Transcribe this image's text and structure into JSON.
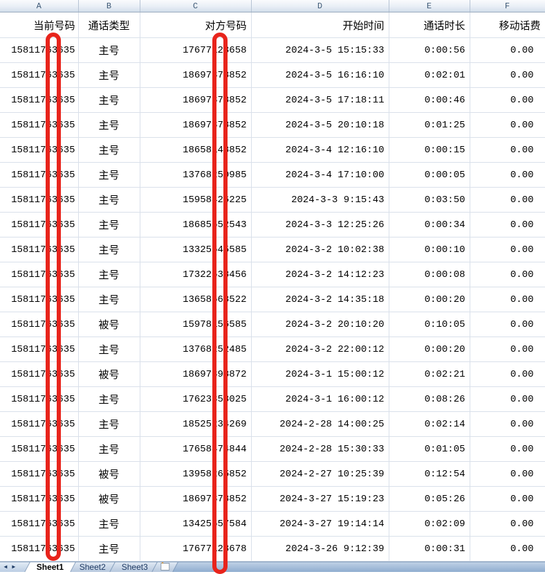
{
  "table": {
    "columns": [
      {
        "letter": "A",
        "label": "当前号码"
      },
      {
        "letter": "B",
        "label": "通话类型"
      },
      {
        "letter": "C",
        "label": "对方号码"
      },
      {
        "letter": "D",
        "label": "开始时间"
      },
      {
        "letter": "E",
        "label": "通话时长"
      },
      {
        "letter": "F",
        "label": "移动话费"
      }
    ],
    "rows": [
      {
        "current": "15811763635",
        "type": "主号",
        "other": "17677123658",
        "start": "2024-3-5 15:15:33",
        "duration": "0:00:56",
        "fee": "0.00"
      },
      {
        "current": "15811763635",
        "type": "主号",
        "other": "18697378852",
        "start": "2024-3-5 16:16:10",
        "duration": "0:02:01",
        "fee": "0.00"
      },
      {
        "current": "15811763635",
        "type": "主号",
        "other": "18697378852",
        "start": "2024-3-5 17:18:11",
        "duration": "0:00:46",
        "fee": "0.00"
      },
      {
        "current": "15811763635",
        "type": "主号",
        "other": "18697378852",
        "start": "2024-3-5 20:10:18",
        "duration": "0:01:25",
        "fee": "0.00"
      },
      {
        "current": "15811763635",
        "type": "主号",
        "other": "18658148852",
        "start": "2024-3-4 12:16:10",
        "duration": "0:00:15",
        "fee": "0.00"
      },
      {
        "current": "15811763635",
        "type": "主号",
        "other": "13768250985",
        "start": "2024-3-4 17:10:00",
        "duration": "0:00:05",
        "fee": "0.00"
      },
      {
        "current": "15811763635",
        "type": "主号",
        "other": "15958426225",
        "start": "2024-3-3 9:15:43",
        "duration": "0:03:50",
        "fee": "0.00"
      },
      {
        "current": "15811763635",
        "type": "主号",
        "other": "18685552543",
        "start": "2024-3-3 12:25:26",
        "duration": "0:00:34",
        "fee": "0.00"
      },
      {
        "current": "15811763635",
        "type": "主号",
        "other": "13325545585",
        "start": "2024-3-2 10:02:38",
        "duration": "0:00:10",
        "fee": "0.00"
      },
      {
        "current": "15811763635",
        "type": "主号",
        "other": "17322538456",
        "start": "2024-3-2 14:12:23",
        "duration": "0:00:08",
        "fee": "0.00"
      },
      {
        "current": "15811763635",
        "type": "主号",
        "other": "13658568522",
        "start": "2024-3-2 14:35:18",
        "duration": "0:00:20",
        "fee": "0.00"
      },
      {
        "current": "15811763635",
        "type": "被号",
        "other": "15978156585",
        "start": "2024-3-2 20:10:20",
        "duration": "0:10:05",
        "fee": "0.00"
      },
      {
        "current": "15811763635",
        "type": "主号",
        "other": "13768252485",
        "start": "2024-3-2 22:00:12",
        "duration": "0:00:20",
        "fee": "0.00"
      },
      {
        "current": "15811763635",
        "type": "被号",
        "other": "18697398872",
        "start": "2024-3-1 15:00:12",
        "duration": "0:02:21",
        "fee": "0.00"
      },
      {
        "current": "15811763635",
        "type": "主号",
        "other": "17623358025",
        "start": "2024-3-1 16:00:12",
        "duration": "0:08:26",
        "fee": "0.00"
      },
      {
        "current": "15811763635",
        "type": "主号",
        "other": "18525234269",
        "start": "2024-2-28 14:00:25",
        "duration": "0:02:14",
        "fee": "0.00"
      },
      {
        "current": "15811763635",
        "type": "主号",
        "other": "17658474844",
        "start": "2024-2-28 15:30:33",
        "duration": "0:01:05",
        "fee": "0.00"
      },
      {
        "current": "15811763635",
        "type": "被号",
        "other": "13958265852",
        "start": "2024-2-27 10:25:39",
        "duration": "0:12:54",
        "fee": "0.00"
      },
      {
        "current": "15811763635",
        "type": "被号",
        "other": "18697378852",
        "start": "2024-3-27 15:19:23",
        "duration": "0:05:26",
        "fee": "0.00"
      },
      {
        "current": "15811763635",
        "type": "主号",
        "other": "13425557584",
        "start": "2024-3-27 19:14:14",
        "duration": "0:02:09",
        "fee": "0.00"
      },
      {
        "current": "15811763635",
        "type": "主号",
        "other": "17677123678",
        "start": "2024-3-26 9:12:39",
        "duration": "0:00:31",
        "fee": "0.00"
      }
    ]
  },
  "annotations": {
    "redaction_color": "#e8241c",
    "bars": [
      {
        "name": "redaction-bar-current-number",
        "covers": "7th digit of column A numbers"
      },
      {
        "name": "redaction-bar-other-number",
        "covers": "6th digit of column C numbers"
      }
    ]
  },
  "sheet_tabs": {
    "tabs": [
      {
        "label": "Sheet1",
        "active": true
      },
      {
        "label": "Sheet2",
        "active": false
      },
      {
        "label": "Sheet3",
        "active": false
      }
    ],
    "nav_prev": "◄",
    "nav_next": "►",
    "insert_star": "*"
  }
}
